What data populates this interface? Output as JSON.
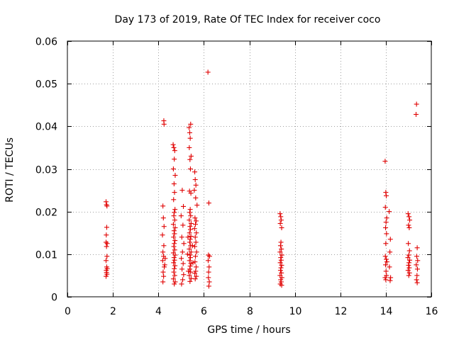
{
  "chart_data": {
    "type": "scatter",
    "title": "Day 173 of 2019, Rate Of TEC Index for receiver coco",
    "xlabel": "GPS time / hours",
    "ylabel": "ROTI / TECUs",
    "xlim": [
      0,
      16
    ],
    "ylim": [
      0,
      0.06
    ],
    "xticks": [
      0,
      2,
      4,
      6,
      8,
      10,
      12,
      14,
      16
    ],
    "yticks": [
      0,
      0.01,
      0.02,
      0.03,
      0.04,
      0.05,
      0.06
    ],
    "xtick_labels": [
      "0",
      "2",
      "4",
      "6",
      "8",
      "10",
      "12",
      "14",
      "16"
    ],
    "ytick_labels": [
      "0",
      "0.01",
      "0.02",
      "0.03",
      "0.04",
      "0.05",
      "0.06"
    ],
    "grid": true,
    "marker": "+",
    "color": "#e00000",
    "series": [
      {
        "name": "ROTI",
        "points": [
          [
            1.7,
            0.0223
          ],
          [
            1.72,
            0.0216
          ],
          [
            1.74,
            0.0213
          ],
          [
            1.73,
            0.0163
          ],
          [
            1.71,
            0.0145
          ],
          [
            1.7,
            0.0128
          ],
          [
            1.75,
            0.0125
          ],
          [
            1.72,
            0.0118
          ],
          [
            1.74,
            0.0095
          ],
          [
            1.7,
            0.0085
          ],
          [
            1.73,
            0.007
          ],
          [
            1.75,
            0.0066
          ],
          [
            1.71,
            0.0062
          ],
          [
            1.72,
            0.0057
          ],
          [
            1.74,
            0.0053
          ],
          [
            1.7,
            0.0048
          ],
          [
            4.2,
            0.0213
          ],
          [
            4.22,
            0.0185
          ],
          [
            4.25,
            0.0165
          ],
          [
            4.18,
            0.0145
          ],
          [
            4.24,
            0.012
          ],
          [
            4.2,
            0.0105
          ],
          [
            4.23,
            0.0095
          ],
          [
            4.19,
            0.0085
          ],
          [
            4.26,
            0.007
          ],
          [
            4.21,
            0.0058
          ],
          [
            4.23,
            0.0048
          ],
          [
            4.2,
            0.0035
          ],
          [
            4.24,
            0.0413
          ],
          [
            4.25,
            0.0405
          ],
          [
            4.3,
            0.009
          ],
          [
            4.28,
            0.0075
          ],
          [
            4.65,
            0.0357
          ],
          [
            4.68,
            0.035
          ],
          [
            4.72,
            0.0343
          ],
          [
            4.7,
            0.0323
          ],
          [
            4.66,
            0.03
          ],
          [
            4.74,
            0.0285
          ],
          [
            4.69,
            0.0265
          ],
          [
            4.71,
            0.0245
          ],
          [
            4.67,
            0.0228
          ],
          [
            4.73,
            0.0205
          ],
          [
            4.7,
            0.0198
          ],
          [
            4.68,
            0.019
          ],
          [
            4.72,
            0.018
          ],
          [
            4.66,
            0.017
          ],
          [
            4.74,
            0.0162
          ],
          [
            4.69,
            0.0155
          ],
          [
            4.71,
            0.0148
          ],
          [
            4.67,
            0.014
          ],
          [
            4.73,
            0.0132
          ],
          [
            4.7,
            0.0125
          ],
          [
            4.68,
            0.0118
          ],
          [
            4.72,
            0.011
          ],
          [
            4.66,
            0.0103
          ],
          [
            4.74,
            0.0098
          ],
          [
            4.69,
            0.0092
          ],
          [
            4.71,
            0.0086
          ],
          [
            4.67,
            0.008
          ],
          [
            4.73,
            0.0073
          ],
          [
            4.7,
            0.0066
          ],
          [
            4.68,
            0.0058
          ],
          [
            4.72,
            0.005
          ],
          [
            4.66,
            0.0042
          ],
          [
            4.74,
            0.0035
          ],
          [
            4.7,
            0.003
          ],
          [
            5.05,
            0.025
          ],
          [
            5.1,
            0.0212
          ],
          [
            5.0,
            0.019
          ],
          [
            5.08,
            0.0168
          ],
          [
            5.03,
            0.014
          ],
          [
            5.12,
            0.0125
          ],
          [
            5.06,
            0.0105
          ],
          [
            5.01,
            0.009
          ],
          [
            5.09,
            0.0078
          ],
          [
            5.04,
            0.0065
          ],
          [
            5.11,
            0.0052
          ],
          [
            5.07,
            0.004
          ],
          [
            5.02,
            0.003
          ],
          [
            5.35,
            0.0397
          ],
          [
            5.38,
            0.0385
          ],
          [
            5.42,
            0.0405
          ],
          [
            5.4,
            0.0372
          ],
          [
            5.36,
            0.035
          ],
          [
            5.44,
            0.033
          ],
          [
            5.39,
            0.0322
          ],
          [
            5.41,
            0.03
          ],
          [
            5.37,
            0.0248
          ],
          [
            5.43,
            0.0243
          ],
          [
            5.4,
            0.0205
          ],
          [
            5.38,
            0.0198
          ],
          [
            5.42,
            0.019
          ],
          [
            5.36,
            0.018
          ],
          [
            5.44,
            0.0172
          ],
          [
            5.39,
            0.0165
          ],
          [
            5.41,
            0.0158
          ],
          [
            5.37,
            0.015
          ],
          [
            5.43,
            0.0142
          ],
          [
            5.4,
            0.0135
          ],
          [
            5.38,
            0.0128
          ],
          [
            5.42,
            0.012
          ],
          [
            5.36,
            0.0112
          ],
          [
            5.44,
            0.0105
          ],
          [
            5.39,
            0.0098
          ],
          [
            5.41,
            0.0092
          ],
          [
            5.37,
            0.0085
          ],
          [
            5.43,
            0.0078
          ],
          [
            5.4,
            0.0072
          ],
          [
            5.38,
            0.0065
          ],
          [
            5.42,
            0.0058
          ],
          [
            5.36,
            0.005
          ],
          [
            5.44,
            0.0043
          ],
          [
            5.39,
            0.0036
          ],
          [
            5.3,
            0.014
          ],
          [
            5.28,
            0.01
          ],
          [
            5.32,
            0.006
          ],
          [
            5.5,
            0.012
          ],
          [
            5.52,
            0.008
          ],
          [
            5.6,
            0.0293
          ],
          [
            5.62,
            0.0275
          ],
          [
            5.65,
            0.0262
          ],
          [
            5.58,
            0.025
          ],
          [
            5.64,
            0.0232
          ],
          [
            5.7,
            0.0215
          ],
          [
            5.61,
            0.0185
          ],
          [
            5.66,
            0.0178
          ],
          [
            5.63,
            0.017
          ],
          [
            5.59,
            0.016
          ],
          [
            5.67,
            0.015
          ],
          [
            5.62,
            0.014
          ],
          [
            5.65,
            0.0128
          ],
          [
            5.6,
            0.0118
          ],
          [
            5.68,
            0.0105
          ],
          [
            5.63,
            0.0095
          ],
          [
            5.61,
            0.0082
          ],
          [
            5.66,
            0.007
          ],
          [
            5.64,
            0.006
          ],
          [
            5.6,
            0.0055
          ],
          [
            5.67,
            0.0048
          ],
          [
            5.62,
            0.0042
          ],
          [
            6.18,
            0.0527
          ],
          [
            6.22,
            0.022
          ],
          [
            6.2,
            0.0098
          ],
          [
            6.25,
            0.0095
          ],
          [
            6.19,
            0.0085
          ],
          [
            6.23,
            0.007
          ],
          [
            6.21,
            0.0058
          ],
          [
            6.2,
            0.0045
          ],
          [
            6.24,
            0.0035
          ],
          [
            6.22,
            0.0025
          ],
          [
            9.35,
            0.0195
          ],
          [
            9.38,
            0.0188
          ],
          [
            9.4,
            0.018
          ],
          [
            9.36,
            0.0172
          ],
          [
            9.42,
            0.0162
          ],
          [
            9.39,
            0.0128
          ],
          [
            9.37,
            0.012
          ],
          [
            9.41,
            0.0112
          ],
          [
            9.35,
            0.0105
          ],
          [
            9.43,
            0.0098
          ],
          [
            9.38,
            0.0092
          ],
          [
            9.4,
            0.0086
          ],
          [
            9.36,
            0.008
          ],
          [
            9.42,
            0.0074
          ],
          [
            9.39,
            0.0068
          ],
          [
            9.37,
            0.0062
          ],
          [
            9.41,
            0.0056
          ],
          [
            9.35,
            0.005
          ],
          [
            9.43,
            0.0045
          ],
          [
            9.38,
            0.004
          ],
          [
            9.4,
            0.0035
          ],
          [
            9.36,
            0.003
          ],
          [
            9.42,
            0.0027
          ],
          [
            13.97,
            0.0318
          ],
          [
            14.0,
            0.0245
          ],
          [
            14.02,
            0.0237
          ],
          [
            13.98,
            0.021
          ],
          [
            14.04,
            0.0185
          ],
          [
            14.01,
            0.0175
          ],
          [
            13.99,
            0.0162
          ],
          [
            14.03,
            0.0148
          ],
          [
            14.0,
            0.0125
          ],
          [
            13.98,
            0.0095
          ],
          [
            14.02,
            0.0088
          ],
          [
            14.05,
            0.0082
          ],
          [
            13.99,
            0.0075
          ],
          [
            14.01,
            0.006
          ],
          [
            14.03,
            0.005
          ],
          [
            13.97,
            0.0045
          ],
          [
            14.0,
            0.004
          ],
          [
            14.15,
            0.02
          ],
          [
            14.2,
            0.0135
          ],
          [
            14.18,
            0.0105
          ],
          [
            14.16,
            0.007
          ],
          [
            14.21,
            0.0045
          ],
          [
            14.19,
            0.0038
          ],
          [
            14.98,
            0.0195
          ],
          [
            15.02,
            0.0188
          ],
          [
            15.05,
            0.018
          ],
          [
            15.0,
            0.0168
          ],
          [
            15.03,
            0.0162
          ],
          [
            14.99,
            0.0125
          ],
          [
            15.04,
            0.0108
          ],
          [
            15.01,
            0.0098
          ],
          [
            14.97,
            0.0092
          ],
          [
            15.05,
            0.0086
          ],
          [
            15.02,
            0.008
          ],
          [
            15.0,
            0.0074
          ],
          [
            15.03,
            0.0068
          ],
          [
            14.98,
            0.0062
          ],
          [
            15.04,
            0.0056
          ],
          [
            15.01,
            0.005
          ],
          [
            15.35,
            0.0452
          ],
          [
            15.33,
            0.0428
          ],
          [
            15.38,
            0.0115
          ],
          [
            15.36,
            0.0095
          ],
          [
            15.4,
            0.0085
          ],
          [
            15.34,
            0.0075
          ],
          [
            15.39,
            0.0065
          ],
          [
            15.37,
            0.005
          ],
          [
            15.35,
            0.004
          ],
          [
            15.38,
            0.0033
          ]
        ]
      }
    ]
  }
}
